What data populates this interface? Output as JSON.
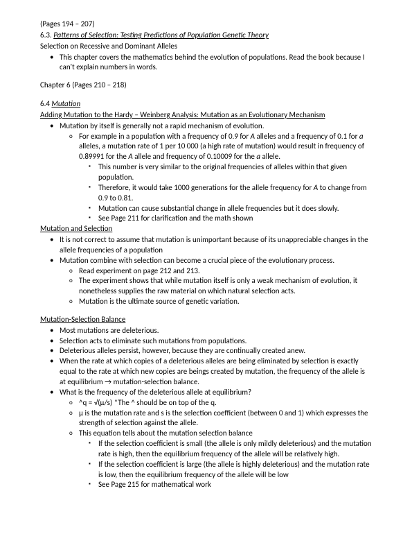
{
  "pages1": "(Pages 194 – 207)",
  "sec63_num": "6.3. ",
  "sec63_title": "Patterns of Selection: Testing Predictions of Population Genetic Theory",
  "sub1": "Selection on Recessive and Dominant Alleles",
  "p1": "This chapter covers the mathematics behind the evolution of populations. Read the book because I can't explain numbers in words.",
  "chap6": "Chapter 6 (Pages 210 – 218)",
  "sec64_num": "6.4 ",
  "sec64_title": "Mutation",
  "sub2": "Adding Mutation to the Hardy – Weinberg Analysis: Mutation as an Evolutionary Mechanism",
  "m1": "Mutation by itself is generally not a rapid mechanism of evolution.",
  "m1a_1": "For example in a population with a frequency of 0.9 for ",
  "m1a_A1": "A",
  "m1a_2": " alleles and a frequency of 0.1 for ",
  "m1a_a": "a",
  "m1a_3": " alleles, a mutation rate of 1 per 10 000 (a high rate of mutation) would result in frequency of 0.89991 for the ",
  "m1a_A2": "A",
  "m1a_4": " allele and frequency of 0.10009 for the ",
  "m1a_a2": "a",
  "m1a_5": " allele.",
  "m1a_i": "This number is very similar to the original frequencies of alleles within that given population.",
  "m1a_ii_1": "Therefore, it would take 1000 generations for the allele frequency for ",
  "m1a_ii_A": "A",
  "m1a_ii_2": " to change from 0.9 to 0.81.",
  "m1a_iii": "Mutation can cause substantial change in allele frequencies but it does slowly.",
  "m1a_iv": "See Page 211 for clarification and the math shown",
  "sub3": "Mutation and Selection",
  "ms1": "It is not correct to assume that mutation is unimportant because of its unappreciable changes in the allele frequencies of a population",
  "ms2": "Mutation combine with selection can become a crucial piece of the evolutionary process.",
  "ms2a": "Read experiment on page 212 and 213.",
  "ms2b": "The experiment shows that while mutation itself is only a weak mechanism of evolution, it nonetheless supplies the raw material on which natural selection acts.",
  "ms2c": "Mutation is the ultimate source of genetic variation.",
  "sub4": "Mutation-Selection Balance",
  "mb1": "Most mutations are deleterious.",
  "mb2": "Selection acts to eliminate such mutations from populations.",
  "mb3": "Deleterious alleles persist, however, because they are continually created anew.",
  "mb4": "When the rate at which copies of a deleterious alleles are being eliminated by selection is exactly equal to the rate at which new copies are beings created by mutation, the frequency of the allele is at equilibrium → mutation-selection balance.",
  "mb5": "What is the frequency of the deleterious allele at equilibrium?",
  "mb5a": "^q = √(µ/s) *The ^ should be on top of the q.",
  "mb5b": "µ is the mutation rate and s is the selection coefficient (between 0 and 1) which expresses the strength of selection against the allele.",
  "mb5c": "This equation tells about the mutation selection balance",
  "mb5c1": "If the selection coefficient is small (the allele is only mildly deleterious) and the mutation rate is high, then the equilibrium frequency of the allele will be relatively high.",
  "mb5c2": "If the selection coefficient is large (the allele is highly deleterious) and the mutation rate is low, then the equilibrium frequency of the allele will be low",
  "mb5c3": "See Page 215 for mathematical work"
}
